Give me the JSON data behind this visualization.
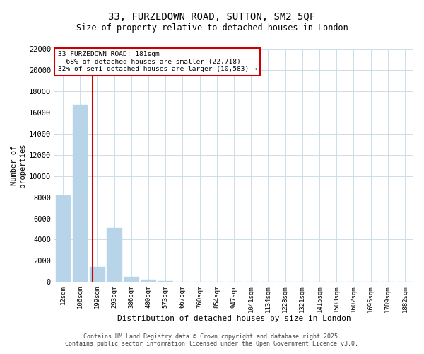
{
  "title": "33, FURZEDOWN ROAD, SUTTON, SM2 5QF",
  "subtitle": "Size of property relative to detached houses in London",
  "xlabel": "Distribution of detached houses by size in London",
  "ylabel": "Number of\nproperties",
  "categories": [
    "12sqm",
    "106sqm",
    "199sqm",
    "293sqm",
    "386sqm",
    "480sqm",
    "573sqm",
    "667sqm",
    "760sqm",
    "854sqm",
    "947sqm",
    "1041sqm",
    "1134sqm",
    "1228sqm",
    "1321sqm",
    "1415sqm",
    "1508sqm",
    "1602sqm",
    "1695sqm",
    "1789sqm",
    "1882sqm"
  ],
  "values": [
    8200,
    16700,
    1400,
    5100,
    500,
    200,
    80,
    50,
    30,
    15,
    8,
    5,
    3,
    2,
    1,
    1,
    1,
    0,
    0,
    0,
    0
  ],
  "bar_color": "#b8d4e8",
  "annotation_text_line1": "33 FURZEDOWN ROAD: 181sqm",
  "annotation_text_line2": "← 68% of detached houses are smaller (22,718)",
  "annotation_text_line3": "32% of semi-detached houses are larger (10,583) →",
  "annotation_box_color": "#cc0000",
  "red_line_x": 1.72,
  "ylim": [
    0,
    22000
  ],
  "yticks": [
    0,
    2000,
    4000,
    6000,
    8000,
    10000,
    12000,
    14000,
    16000,
    18000,
    20000,
    22000
  ],
  "footer_line1": "Contains HM Land Registry data © Crown copyright and database right 2025.",
  "footer_line2": "Contains public sector information licensed under the Open Government Licence v3.0.",
  "bg_color": "#ffffff",
  "grid_color": "#ccdde8"
}
